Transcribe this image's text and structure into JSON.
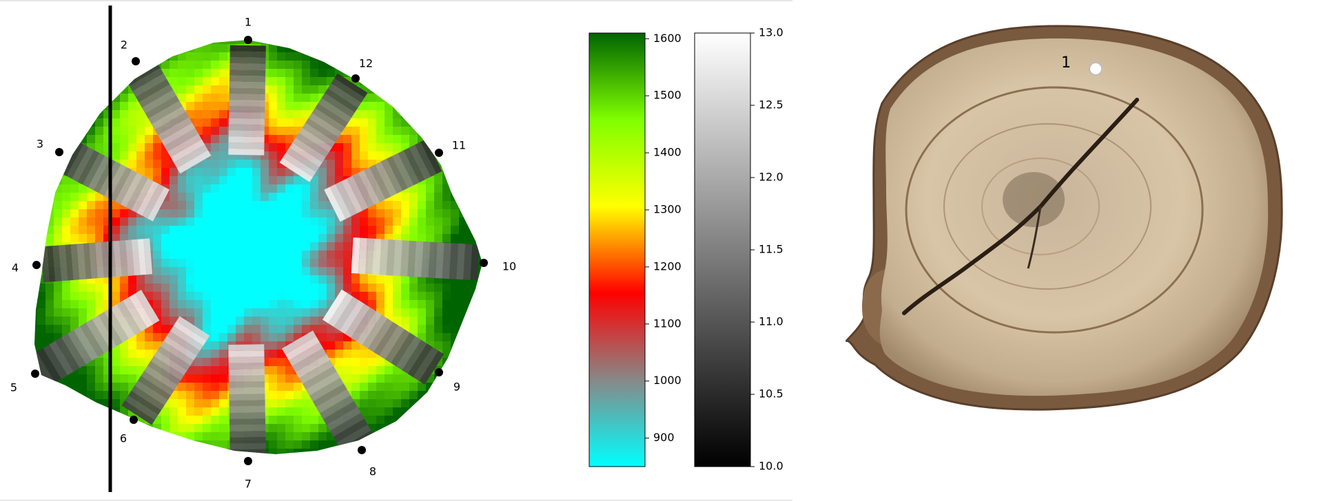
{
  "chart_data": [
    {
      "type": "heatmap",
      "title": "",
      "description": "Tomography map of tree cross-section with radial sensor strips",
      "sensor_points": [
        {
          "label": "1"
        },
        {
          "label": "2"
        },
        {
          "label": "3"
        },
        {
          "label": "4"
        },
        {
          "label": "5"
        },
        {
          "label": "6"
        },
        {
          "label": "7"
        },
        {
          "label": "8"
        },
        {
          "label": "9"
        },
        {
          "label": "10"
        },
        {
          "label": "11"
        },
        {
          "label": "12"
        }
      ],
      "value_colorbar": {
        "min": 850,
        "max": 1610,
        "ticks": [
          "900",
          "1000",
          "1100",
          "1200",
          "1300",
          "1400",
          "1500",
          "1600"
        ],
        "colors": [
          "#00ffff",
          "#888888",
          "#ff0000",
          "#ffff00",
          "#80ff00",
          "#006400"
        ]
      },
      "strip_colorbar": {
        "min": 10.0,
        "max": 13.0,
        "ticks": [
          "10.0",
          "10.5",
          "11.0",
          "11.5",
          "12.0",
          "12.5",
          "13.0"
        ],
        "colors": [
          "#000000",
          "#ffffff"
        ]
      }
    }
  ],
  "photo": {
    "subject": "tree stump cross-section",
    "marking": "1"
  }
}
